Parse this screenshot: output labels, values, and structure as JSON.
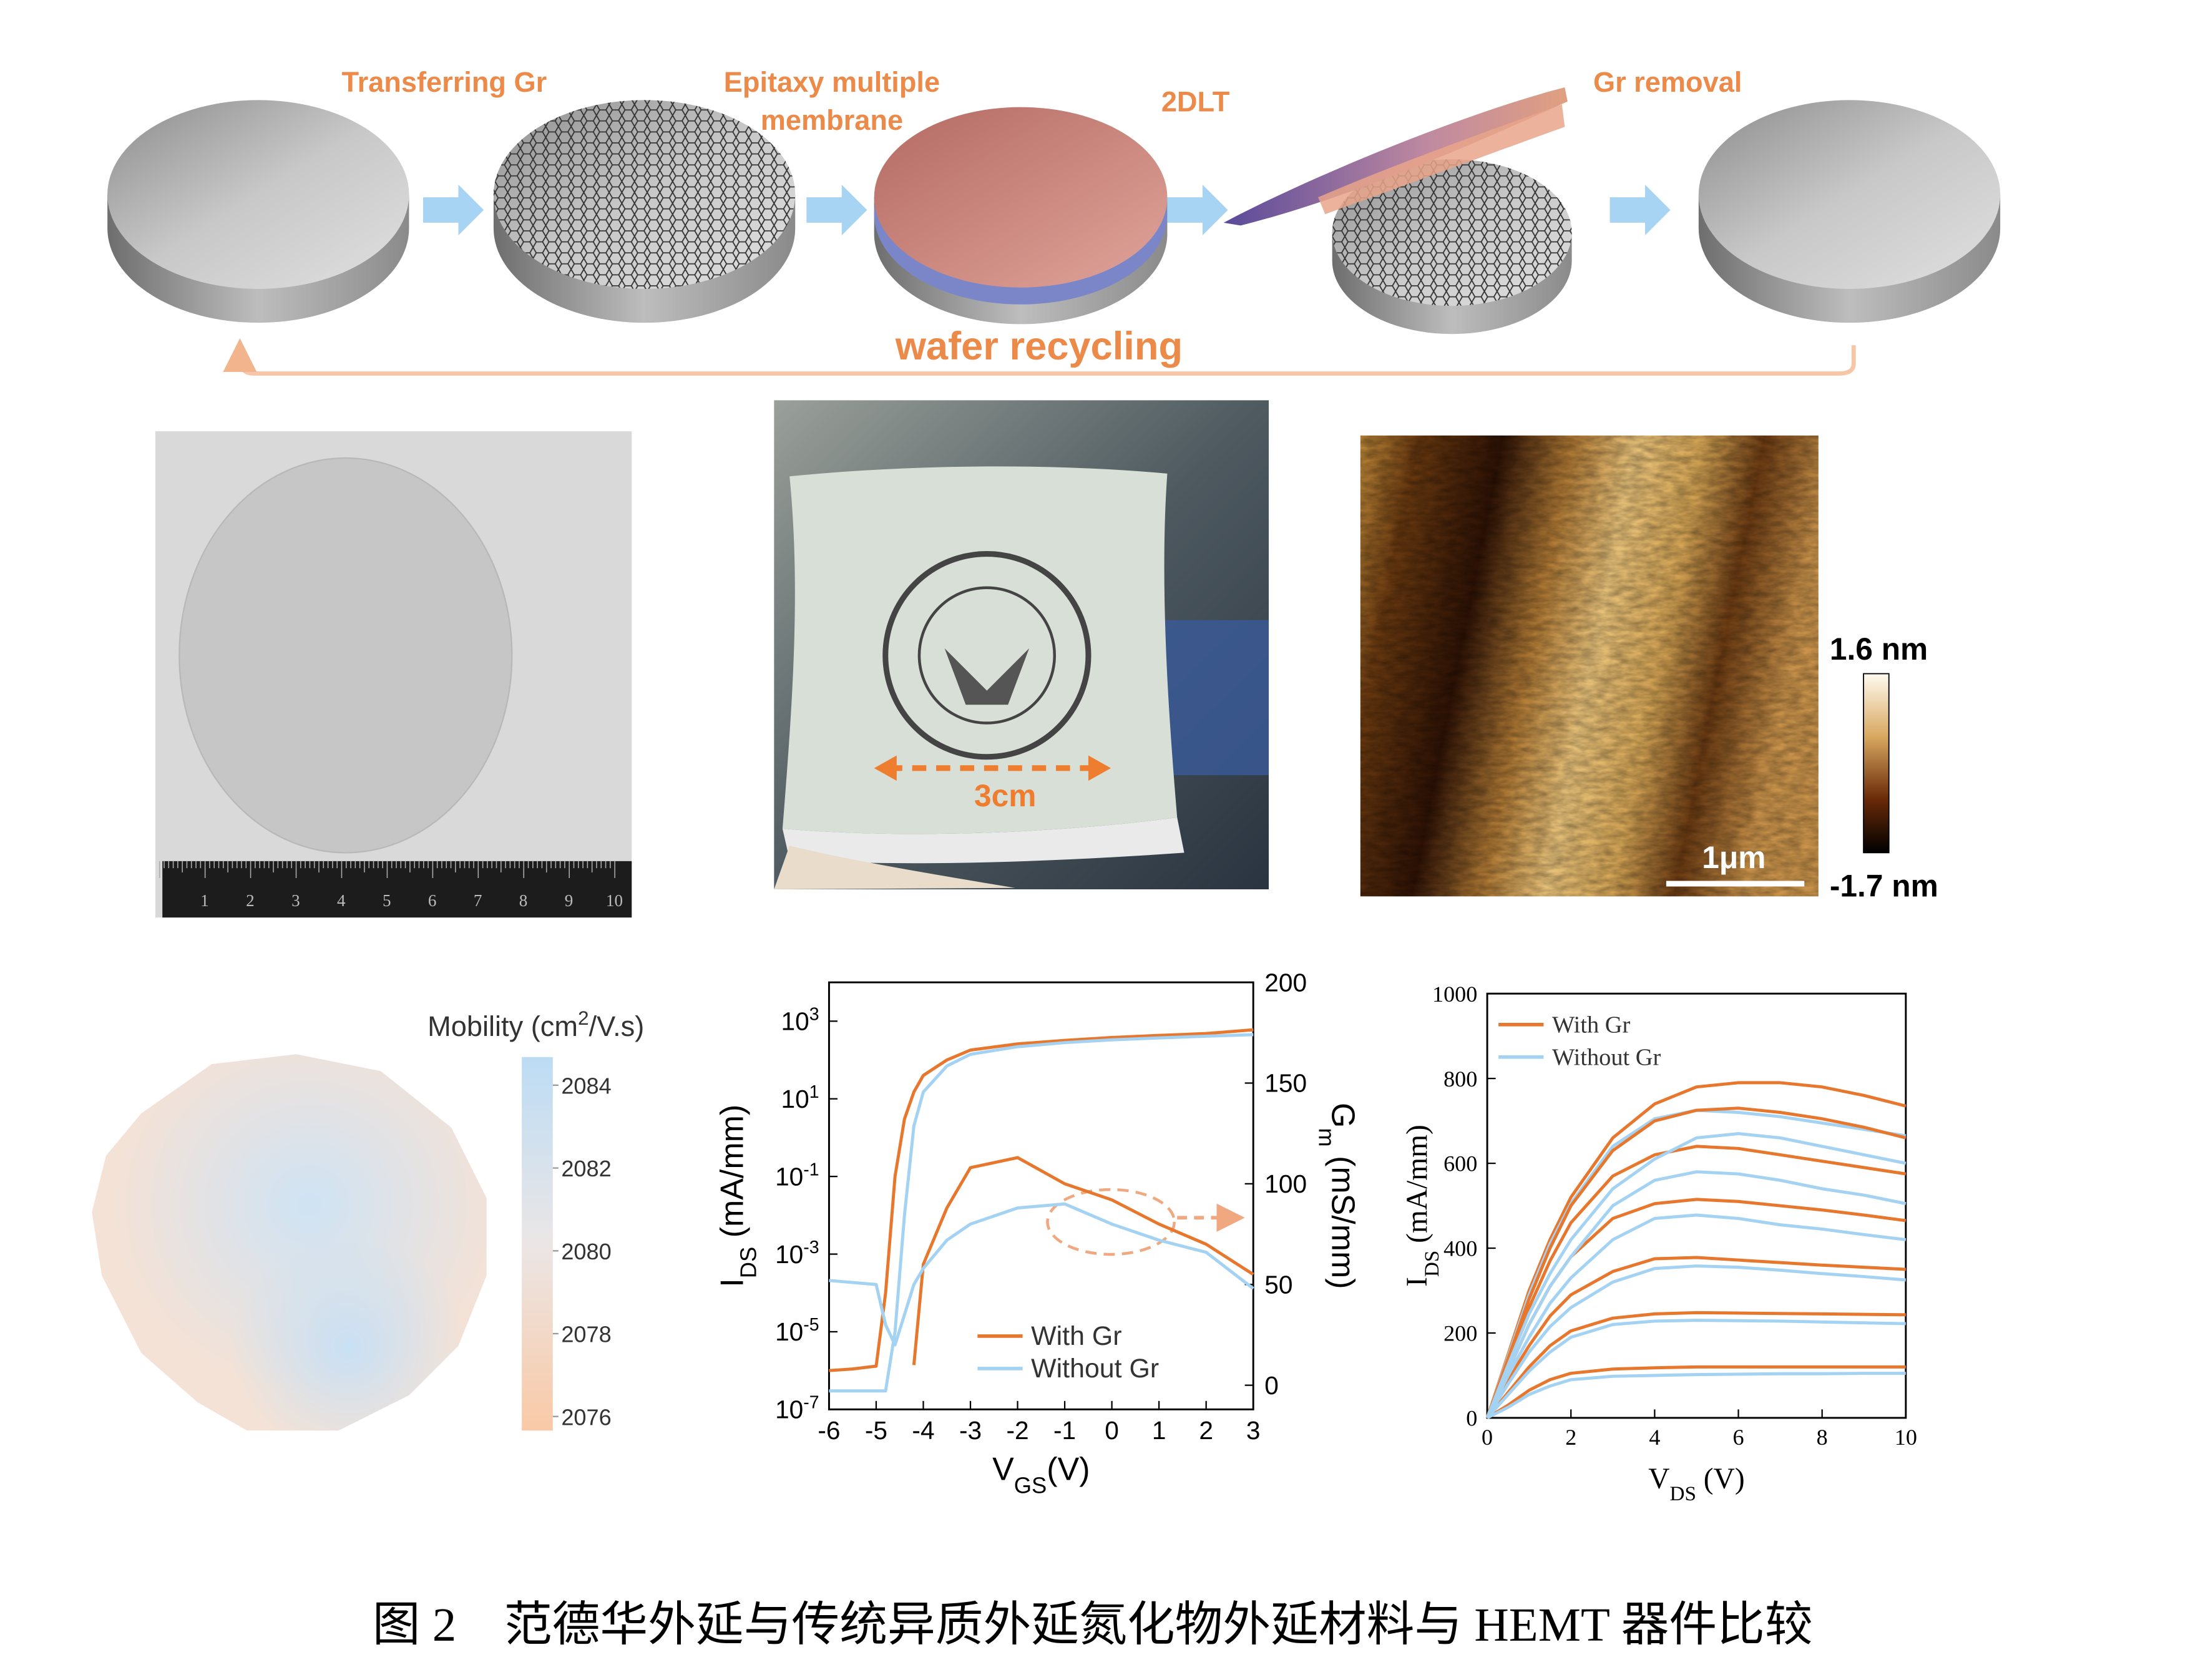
{
  "process": {
    "steps": [
      [
        "Transferring Gr"
      ],
      [
        "Epitaxy multiple",
        "membrane"
      ],
      [
        "2DLT"
      ],
      [
        "Gr removal"
      ]
    ],
    "loop": "wafer recycling"
  },
  "photos": {
    "ruler": [
      1,
      2,
      3,
      4,
      5,
      6,
      7,
      8,
      9,
      10
    ],
    "flexible_scale": "3cm"
  },
  "afm": {
    "max_label": "1.6 nm",
    "min_label": "-1.7 nm",
    "scalebar": "1μm"
  },
  "mobility_map": {
    "title": "Mobility (cm^{2}/V.s)",
    "lim": [
      2075.66,
      2084.68
    ],
    "ticks": [
      2076,
      2078,
      2080,
      2082,
      2084
    ]
  },
  "chart_data": [
    {
      "type": "line",
      "x": [
        -6,
        -5.5,
        -5,
        -4.8,
        -4.6,
        -4.4,
        -4.2,
        -4,
        -3.5,
        -3,
        -2,
        -1,
        0,
        1,
        2,
        3
      ],
      "xlim": [
        -6,
        3
      ],
      "xticks": [
        -6,
        -5,
        -4,
        -3,
        -2,
        -1,
        0,
        1,
        2,
        3
      ],
      "x_label": "V_{GS}(V)",
      "y_label": "I_{DS} (mA/mm)",
      "y2_label": "G_{m} (mS/mm)",
      "log_y": true,
      "ylim": [
        1e-07,
        10000
      ],
      "yticks": [
        {
          "value": 1e-07,
          "label": "10^{-7}"
        },
        {
          "value": 1e-05,
          "label": "10^{-5}"
        },
        {
          "value": 0.001,
          "label": "10^{-3}"
        },
        {
          "value": 0.1,
          "label": "10^{-1}"
        },
        {
          "value": 10,
          "label": "10^{1}"
        },
        {
          "value": 1000,
          "label": "10^{3}"
        }
      ],
      "y2lim": [
        -12,
        200
      ],
      "y2ticks": [
        0,
        50,
        100,
        150,
        200
      ],
      "legend": "lower center",
      "series": [
        {
          "name": "With Gr",
          "color": "#e8772e",
          "values": [
            1e-06,
            1.1e-06,
            1.3e-06,
            0.0001,
            0.1,
            3,
            15,
            40,
            100,
            180,
            260,
            320,
            380,
            430,
            480,
            600
          ]
        },
        {
          "name": "Without Gr",
          "color": "#a3d2f2",
          "values": [
            3e-07,
            3e-07,
            3e-07,
            3e-07,
            1e-05,
            0.01,
            2,
            15,
            70,
            140,
            220,
            280,
            330,
            370,
            410,
            450
          ]
        },
        {
          "color": "#e8772e",
          "axis": "y2",
          "values": [
            null,
            null,
            null,
            null,
            null,
            null,
            10,
            60,
            88,
            108,
            113,
            100,
            92,
            80,
            70,
            55
          ]
        },
        {
          "color": "#a3d2f2",
          "axis": "y2",
          "values": [
            52,
            51,
            50,
            30,
            20,
            35,
            50,
            58,
            72,
            80,
            88,
            90,
            80,
            72,
            66,
            48
          ]
        }
      ]
    },
    {
      "type": "line",
      "x": [
        0,
        0.5,
        1,
        1.5,
        2,
        3,
        4,
        5,
        6,
        7,
        8,
        9,
        10
      ],
      "xlim": [
        0,
        10
      ],
      "xticks": [
        0,
        2,
        4,
        6,
        8,
        10
      ],
      "x_label": "V_{DS} (V)",
      "y_label": "I_{DS} (mA/mm)",
      "ylim": [
        0,
        1000
      ],
      "yticks": [
        0,
        200,
        400,
        600,
        800,
        1000
      ],
      "legend": "upper left",
      "series": [
        {
          "name": "With Gr",
          "color": "#e8772e",
          "values": [
            0,
            150,
            300,
            420,
            520,
            660,
            740,
            780,
            790,
            790,
            780,
            760,
            735
          ]
        },
        {
          "name": "Without Gr",
          "color": "#a3d2f2",
          "values": [
            0,
            145,
            290,
            410,
            505,
            640,
            705,
            725,
            720,
            710,
            695,
            680,
            665
          ]
        },
        {
          "color": "#e8772e",
          "values": [
            0,
            140,
            280,
            400,
            500,
            630,
            700,
            725,
            730,
            720,
            705,
            685,
            660
          ]
        },
        {
          "color": "#e8772e",
          "values": [
            0,
            130,
            260,
            370,
            460,
            570,
            620,
            640,
            635,
            620,
            605,
            590,
            575
          ]
        },
        {
          "color": "#e8772e",
          "values": [
            0,
            110,
            220,
            310,
            380,
            470,
            505,
            515,
            510,
            500,
            490,
            478,
            465
          ]
        },
        {
          "color": "#e8772e",
          "values": [
            0,
            90,
            170,
            240,
            290,
            345,
            375,
            378,
            372,
            366,
            360,
            355,
            350
          ]
        },
        {
          "color": "#e8772e",
          "values": [
            0,
            60,
            120,
            170,
            205,
            235,
            245,
            248,
            247,
            246,
            245,
            244,
            243
          ]
        },
        {
          "color": "#e8772e",
          "values": [
            0,
            30,
            65,
            90,
            105,
            115,
            118,
            120,
            120,
            120,
            120,
            120,
            120
          ]
        },
        {
          "color": "#a3d2f2",
          "values": [
            0,
            125,
            245,
            340,
            420,
            540,
            610,
            660,
            670,
            660,
            640,
            620,
            600
          ]
        },
        {
          "color": "#a3d2f2",
          "values": [
            0,
            110,
            220,
            310,
            380,
            500,
            560,
            580,
            575,
            560,
            540,
            525,
            505
          ]
        },
        {
          "color": "#a3d2f2",
          "values": [
            0,
            100,
            190,
            270,
            330,
            420,
            470,
            478,
            470,
            455,
            445,
            432,
            420
          ]
        },
        {
          "color": "#a3d2f2",
          "values": [
            0,
            80,
            155,
            215,
            260,
            320,
            352,
            358,
            355,
            348,
            340,
            333,
            325
          ]
        },
        {
          "color": "#a3d2f2",
          "values": [
            0,
            55,
            110,
            155,
            190,
            220,
            228,
            230,
            229,
            228,
            226,
            224,
            222
          ]
        },
        {
          "color": "#a3d2f2",
          "values": [
            0,
            25,
            55,
            75,
            90,
            98,
            100,
            102,
            103,
            104,
            104,
            105,
            105
          ]
        }
      ]
    }
  ],
  "caption": "图 2　范德华外延与传统异质外延氮化物外延材料与 HEMT 器件比较"
}
